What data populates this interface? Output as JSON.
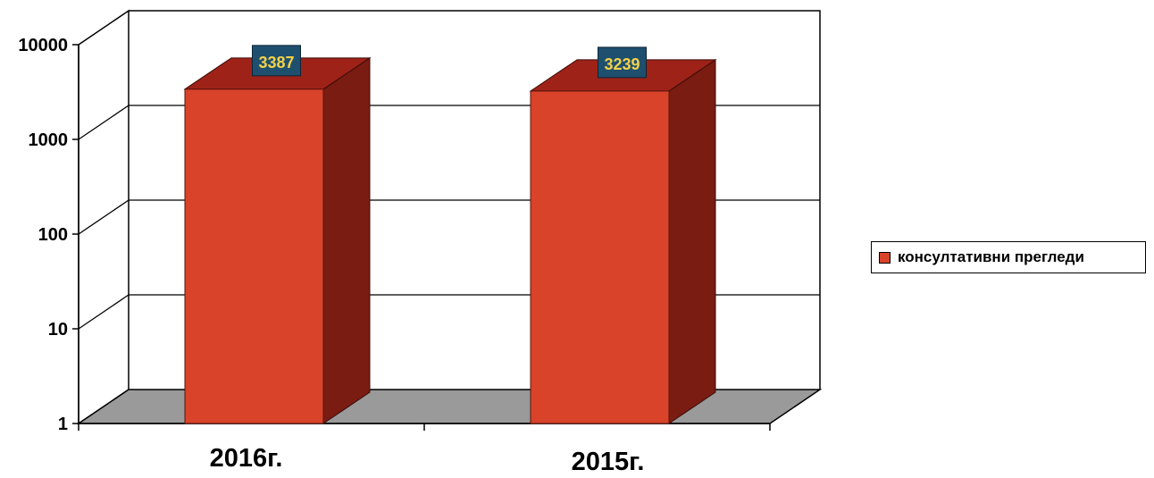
{
  "chart_data": {
    "type": "bar",
    "title": "",
    "xlabel": "",
    "ylabel": "",
    "y_scale": "log",
    "ylim": [
      1,
      10000
    ],
    "y_ticks": [
      "1",
      "10",
      "100",
      "1000",
      "10000"
    ],
    "y_tick_values": [
      1,
      10,
      100,
      1000,
      10000
    ],
    "categories": [
      "2016г.",
      "2015г."
    ],
    "series": [
      {
        "name": "консултативни прегледи",
        "values": [
          3387,
          3239
        ]
      }
    ],
    "data_labels": [
      "3387",
      "3239"
    ],
    "grid": true,
    "legend_position": "right",
    "colors": {
      "bar_front": "#d8432a",
      "bar_side": "#7a1c12",
      "bar_top": "#9e2218",
      "floor": "#9a9a9a",
      "label_box": "#1f4f6e",
      "label_text": "#f2d24a"
    }
  }
}
